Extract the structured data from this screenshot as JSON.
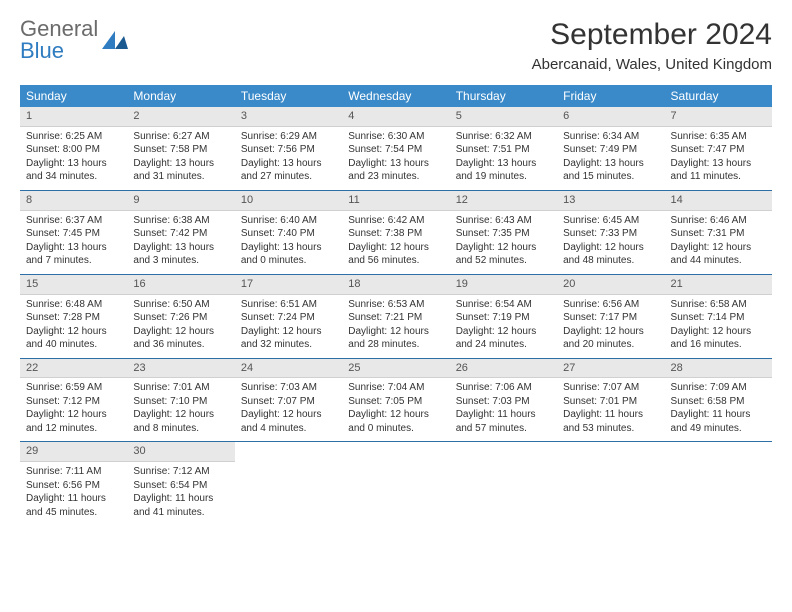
{
  "logo": {
    "text_gray": "General",
    "text_blue": "Blue"
  },
  "title": "September 2024",
  "location": "Abercanaid, Wales, United Kingdom",
  "colors": {
    "header_bg": "#3a8ac9",
    "header_text": "#ffffff",
    "daynum_bg": "#e8e8e8",
    "week_sep": "#2f6fa8",
    "logo_gray": "#6b6b6b",
    "logo_blue": "#2f7cc0"
  },
  "weekdays": [
    "Sunday",
    "Monday",
    "Tuesday",
    "Wednesday",
    "Thursday",
    "Friday",
    "Saturday"
  ],
  "days": [
    {
      "n": "1",
      "sr": "Sunrise: 6:25 AM",
      "ss": "Sunset: 8:00 PM",
      "dl": "Daylight: 13 hours and 34 minutes."
    },
    {
      "n": "2",
      "sr": "Sunrise: 6:27 AM",
      "ss": "Sunset: 7:58 PM",
      "dl": "Daylight: 13 hours and 31 minutes."
    },
    {
      "n": "3",
      "sr": "Sunrise: 6:29 AM",
      "ss": "Sunset: 7:56 PM",
      "dl": "Daylight: 13 hours and 27 minutes."
    },
    {
      "n": "4",
      "sr": "Sunrise: 6:30 AM",
      "ss": "Sunset: 7:54 PM",
      "dl": "Daylight: 13 hours and 23 minutes."
    },
    {
      "n": "5",
      "sr": "Sunrise: 6:32 AM",
      "ss": "Sunset: 7:51 PM",
      "dl": "Daylight: 13 hours and 19 minutes."
    },
    {
      "n": "6",
      "sr": "Sunrise: 6:34 AM",
      "ss": "Sunset: 7:49 PM",
      "dl": "Daylight: 13 hours and 15 minutes."
    },
    {
      "n": "7",
      "sr": "Sunrise: 6:35 AM",
      "ss": "Sunset: 7:47 PM",
      "dl": "Daylight: 13 hours and 11 minutes."
    },
    {
      "n": "8",
      "sr": "Sunrise: 6:37 AM",
      "ss": "Sunset: 7:45 PM",
      "dl": "Daylight: 13 hours and 7 minutes."
    },
    {
      "n": "9",
      "sr": "Sunrise: 6:38 AM",
      "ss": "Sunset: 7:42 PM",
      "dl": "Daylight: 13 hours and 3 minutes."
    },
    {
      "n": "10",
      "sr": "Sunrise: 6:40 AM",
      "ss": "Sunset: 7:40 PM",
      "dl": "Daylight: 13 hours and 0 minutes."
    },
    {
      "n": "11",
      "sr": "Sunrise: 6:42 AM",
      "ss": "Sunset: 7:38 PM",
      "dl": "Daylight: 12 hours and 56 minutes."
    },
    {
      "n": "12",
      "sr": "Sunrise: 6:43 AM",
      "ss": "Sunset: 7:35 PM",
      "dl": "Daylight: 12 hours and 52 minutes."
    },
    {
      "n": "13",
      "sr": "Sunrise: 6:45 AM",
      "ss": "Sunset: 7:33 PM",
      "dl": "Daylight: 12 hours and 48 minutes."
    },
    {
      "n": "14",
      "sr": "Sunrise: 6:46 AM",
      "ss": "Sunset: 7:31 PM",
      "dl": "Daylight: 12 hours and 44 minutes."
    },
    {
      "n": "15",
      "sr": "Sunrise: 6:48 AM",
      "ss": "Sunset: 7:28 PM",
      "dl": "Daylight: 12 hours and 40 minutes."
    },
    {
      "n": "16",
      "sr": "Sunrise: 6:50 AM",
      "ss": "Sunset: 7:26 PM",
      "dl": "Daylight: 12 hours and 36 minutes."
    },
    {
      "n": "17",
      "sr": "Sunrise: 6:51 AM",
      "ss": "Sunset: 7:24 PM",
      "dl": "Daylight: 12 hours and 32 minutes."
    },
    {
      "n": "18",
      "sr": "Sunrise: 6:53 AM",
      "ss": "Sunset: 7:21 PM",
      "dl": "Daylight: 12 hours and 28 minutes."
    },
    {
      "n": "19",
      "sr": "Sunrise: 6:54 AM",
      "ss": "Sunset: 7:19 PM",
      "dl": "Daylight: 12 hours and 24 minutes."
    },
    {
      "n": "20",
      "sr": "Sunrise: 6:56 AM",
      "ss": "Sunset: 7:17 PM",
      "dl": "Daylight: 12 hours and 20 minutes."
    },
    {
      "n": "21",
      "sr": "Sunrise: 6:58 AM",
      "ss": "Sunset: 7:14 PM",
      "dl": "Daylight: 12 hours and 16 minutes."
    },
    {
      "n": "22",
      "sr": "Sunrise: 6:59 AM",
      "ss": "Sunset: 7:12 PM",
      "dl": "Daylight: 12 hours and 12 minutes."
    },
    {
      "n": "23",
      "sr": "Sunrise: 7:01 AM",
      "ss": "Sunset: 7:10 PM",
      "dl": "Daylight: 12 hours and 8 minutes."
    },
    {
      "n": "24",
      "sr": "Sunrise: 7:03 AM",
      "ss": "Sunset: 7:07 PM",
      "dl": "Daylight: 12 hours and 4 minutes."
    },
    {
      "n": "25",
      "sr": "Sunrise: 7:04 AM",
      "ss": "Sunset: 7:05 PM",
      "dl": "Daylight: 12 hours and 0 minutes."
    },
    {
      "n": "26",
      "sr": "Sunrise: 7:06 AM",
      "ss": "Sunset: 7:03 PM",
      "dl": "Daylight: 11 hours and 57 minutes."
    },
    {
      "n": "27",
      "sr": "Sunrise: 7:07 AM",
      "ss": "Sunset: 7:01 PM",
      "dl": "Daylight: 11 hours and 53 minutes."
    },
    {
      "n": "28",
      "sr": "Sunrise: 7:09 AM",
      "ss": "Sunset: 6:58 PM",
      "dl": "Daylight: 11 hours and 49 minutes."
    },
    {
      "n": "29",
      "sr": "Sunrise: 7:11 AM",
      "ss": "Sunset: 6:56 PM",
      "dl": "Daylight: 11 hours and 45 minutes."
    },
    {
      "n": "30",
      "sr": "Sunrise: 7:12 AM",
      "ss": "Sunset: 6:54 PM",
      "dl": "Daylight: 11 hours and 41 minutes."
    }
  ],
  "layout": {
    "first_weekday_index": 0,
    "total_days": 30,
    "columns": 7
  }
}
